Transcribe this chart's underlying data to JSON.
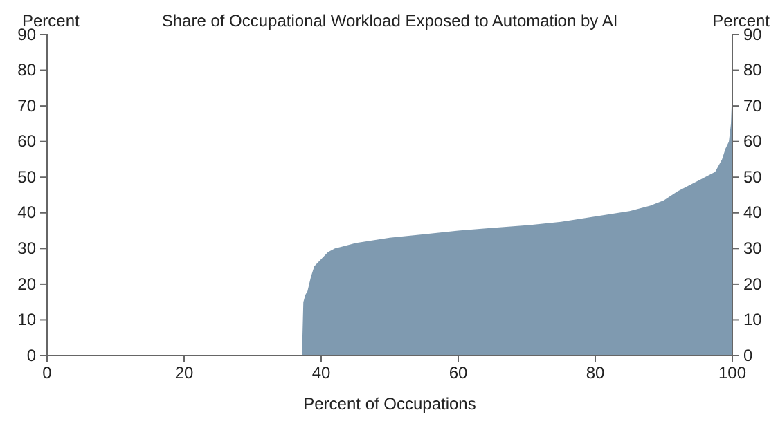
{
  "chart_data": {
    "type": "area",
    "title": "Share of Occupational Workload Exposed to Automation by AI",
    "xlabel": "Percent of Occupations",
    "ylabel": "Percent",
    "y2label": "Percent",
    "x": [
      0,
      37.2,
      37.4,
      37.7,
      38,
      38.5,
      39,
      40,
      41,
      42,
      43,
      45,
      50,
      55,
      60,
      65,
      70,
      75,
      80,
      85,
      88,
      90,
      92,
      94,
      96,
      97.5,
      98.5,
      99,
      99.5,
      99.8,
      100
    ],
    "series": [
      {
        "color": "#7f9ab0",
        "values": [
          0,
          0,
          15,
          17,
          18,
          22,
          25,
          27,
          29,
          30,
          30.5,
          31.5,
          33,
          34,
          35,
          35.8,
          36.5,
          37.5,
          39,
          40.5,
          42,
          43.5,
          46,
          48,
          50,
          51.5,
          55,
          58,
          60,
          65,
          75
        ]
      }
    ],
    "xlim": [
      0,
      100
    ],
    "xticks": [
      0,
      20,
      40,
      60,
      80,
      100
    ],
    "ylim": [
      0,
      90
    ],
    "yticks": [
      0,
      10,
      20,
      30,
      40,
      50,
      60,
      70,
      80,
      90
    ],
    "y2lim": [
      0,
      90
    ],
    "y2ticks": [
      0,
      10,
      20,
      30,
      40,
      50,
      60,
      70,
      80,
      90
    ],
    "grid": false
  }
}
